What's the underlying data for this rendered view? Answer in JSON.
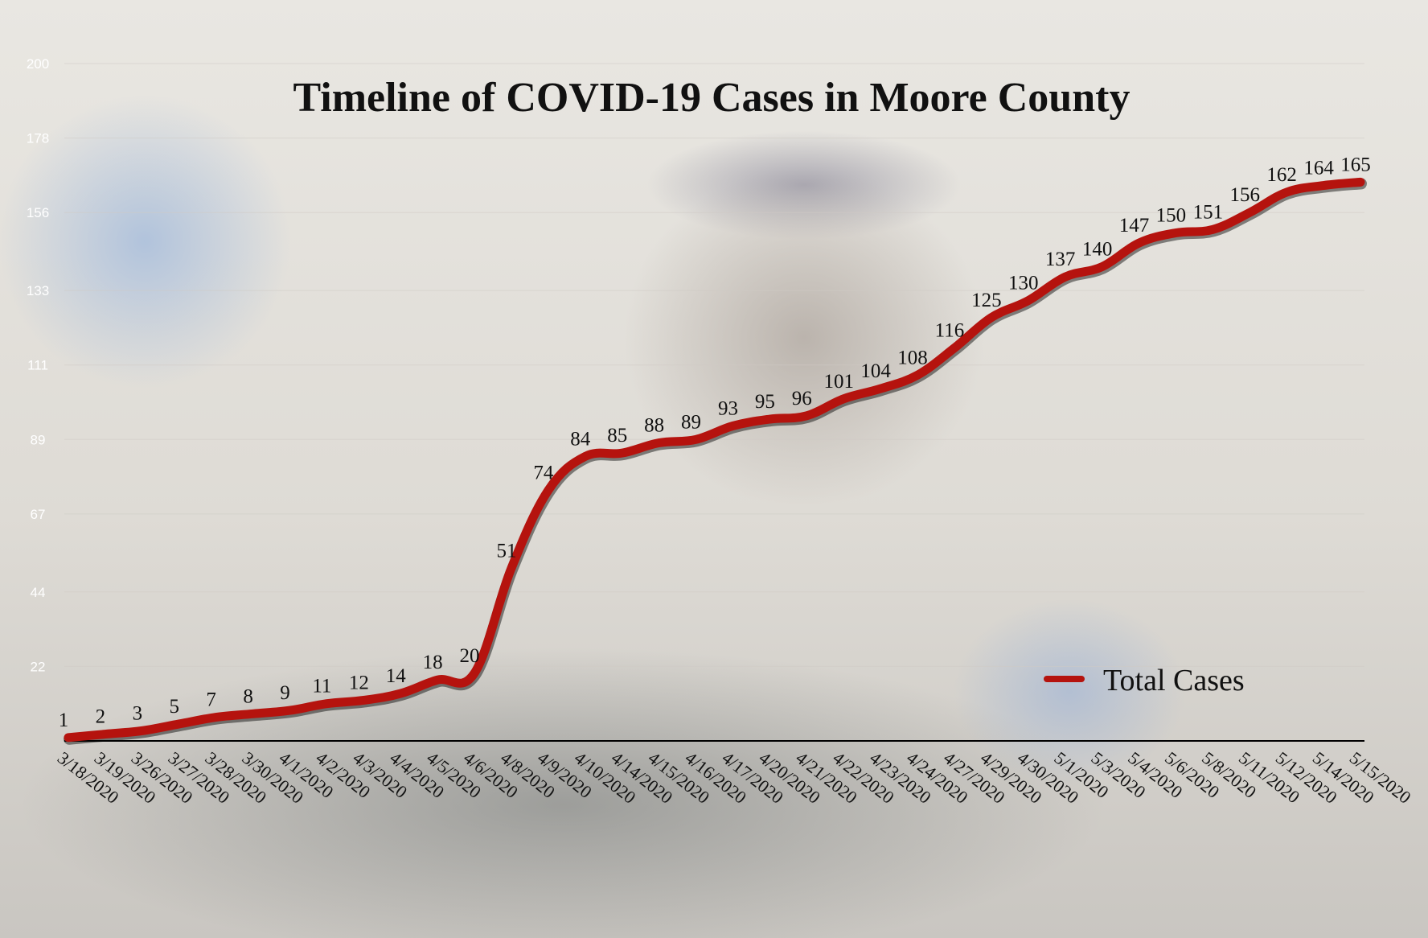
{
  "chart_data": {
    "type": "line",
    "title": "Timeline of COVID-19 Cases in Moore County",
    "xlabel": "",
    "ylabel": "",
    "ylim": [
      0,
      200
    ],
    "yticks": [
      "200",
      "178",
      "156",
      "133",
      "111",
      "89",
      "67",
      "44",
      "22"
    ],
    "grid": true,
    "legend_position": "bottom-right",
    "colors": {
      "line": "#b5130e",
      "gridline": "#cfcac4",
      "axis": "#000000",
      "ytick": "#ffffff"
    },
    "categories": [
      "3/18/2020",
      "3/19/2020",
      "3/26/2020",
      "3/27/2020",
      "3/28/2020",
      "3/30/2020",
      "4/1/2020",
      "4/2/2020",
      "4/3/2020",
      "4/4/2020",
      "4/5/2020",
      "4/6/2020",
      "4/8/2020",
      "4/9/2020",
      "4/10/2020",
      "4/14/2020",
      "4/15/2020",
      "4/16/2020",
      "4/17/2020",
      "4/20/2020",
      "4/21/2020",
      "4/22/2020",
      "4/23/2020",
      "4/24/2020",
      "4/27/2020",
      "4/29/2020",
      "4/30/2020",
      "5/1/2020",
      "5/3/2020",
      "5/4/2020",
      "5/6/2020",
      "5/8/2020",
      "5/11/2020",
      "5/12/2020",
      "5/14/2020",
      "5/15/2020"
    ],
    "series": [
      {
        "name": "Total Cases",
        "values": [
          1,
          2,
          3,
          5,
          7,
          8,
          9,
          11,
          12,
          14,
          18,
          20,
          51,
          74,
          84,
          85,
          88,
          89,
          93,
          95,
          96,
          101,
          104,
          108,
          116,
          125,
          130,
          137,
          140,
          147,
          150,
          151,
          156,
          162,
          164,
          165
        ]
      }
    ]
  }
}
